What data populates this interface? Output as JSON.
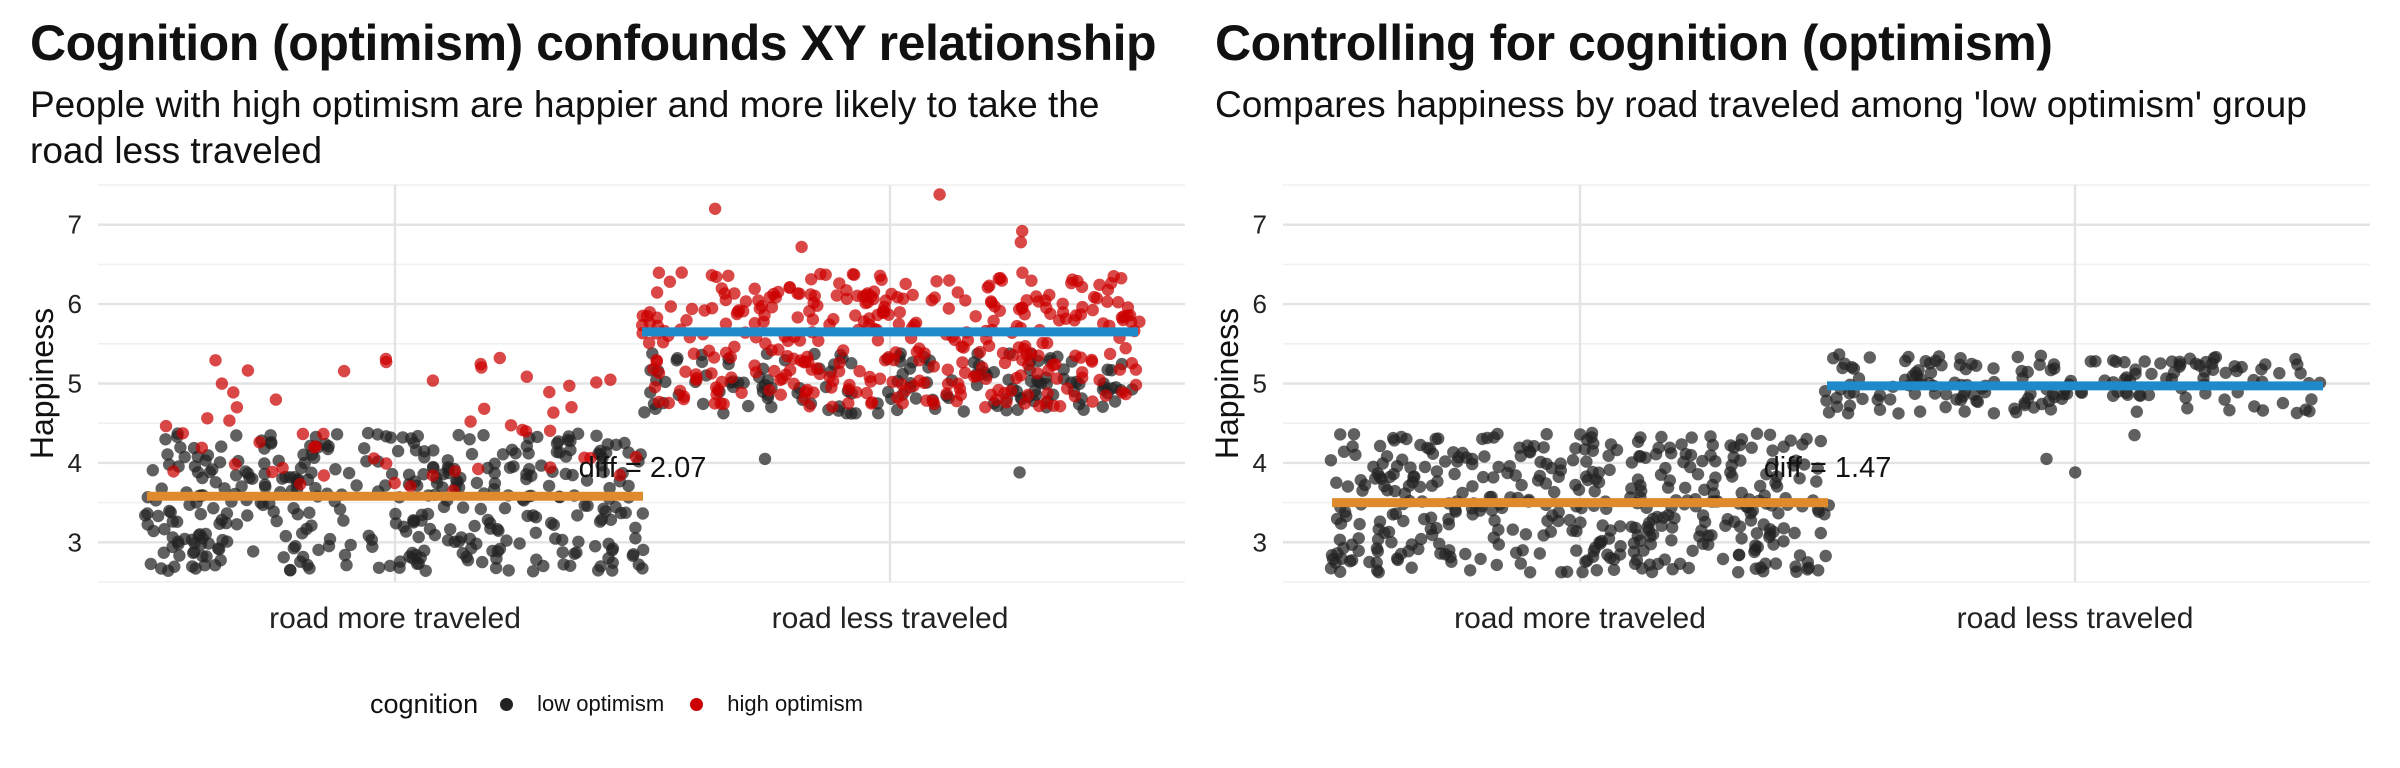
{
  "colors": {
    "low_optimism": "#222222",
    "high_optimism": "#cc0000",
    "mean_more": "#e08a2e",
    "mean_less": "#1f8ac9",
    "grid": "#e6e6e6"
  },
  "legend": {
    "title": "cognition",
    "items": [
      {
        "label": "low optimism",
        "color": "#222222"
      },
      {
        "label": "high optimism",
        "color": "#cc0000"
      }
    ]
  },
  "panels": [
    {
      "title": "Cognition (optimism) confounds XY relationship",
      "subtitle": "People with high optimism are happier and more likely to take the road less traveled"
    },
    {
      "title": "Controlling for cognition (optimism)",
      "subtitle": "Compares happiness by road traveled among 'low optimism' group"
    }
  ],
  "chart_data": [
    {
      "type": "scatter",
      "title": "Cognition (optimism) confounds XY relationship",
      "subtitle": "People with high optimism are happier and more likely to take the road less traveled",
      "xlabel": "",
      "ylabel": "Happiness",
      "categories": [
        "road more traveled",
        "road less traveled"
      ],
      "ylim": [
        2.5,
        7.5
      ],
      "yticks": [
        3,
        4,
        5,
        6,
        7
      ],
      "grid": true,
      "legend_position": "bottom",
      "series": [
        {
          "name": "low optimism",
          "color": "#222222",
          "groups": [
            {
              "category": "road more traveled",
              "count": 380,
              "ymin": 2.62,
              "ymax": 4.38
            },
            {
              "category": "road less traveled",
              "count": 150,
              "ymin": 4.62,
              "ymax": 5.38,
              "extra": [
                3.88,
                4.05
              ]
            }
          ]
        },
        {
          "name": "high optimism",
          "color": "#cc0000",
          "groups": [
            {
              "category": "road more traveled",
              "count": 55,
              "ymin": 3.6,
              "ymax": 5.35
            },
            {
              "category": "road less traveled",
              "count": 360,
              "ymin": 4.7,
              "ymax": 6.4,
              "extra": [
                7.2,
                6.92,
                6.72,
                7.38,
                6.78
              ]
            }
          ]
        }
      ],
      "means": [
        {
          "category": "road more traveled",
          "value": 3.58,
          "color": "#e08a2e"
        },
        {
          "category": "road less traveled",
          "value": 5.65,
          "color": "#1f8ac9"
        }
      ],
      "annotation": {
        "text": "diff = 2.07",
        "x_between": true,
        "y": 3.95
      }
    },
    {
      "type": "scatter",
      "title": "Controlling for cognition (optimism)",
      "subtitle": "Compares happiness by road traveled among 'low optimism' group",
      "xlabel": "",
      "ylabel": "Happiness",
      "categories": [
        "road more traveled",
        "road less traveled"
      ],
      "ylim": [
        2.5,
        7.5
      ],
      "yticks": [
        3,
        4,
        5,
        6,
        7
      ],
      "grid": true,
      "series": [
        {
          "name": "low optimism",
          "color": "#222222",
          "groups": [
            {
              "category": "road more traveled",
              "count": 420,
              "ymin": 2.62,
              "ymax": 4.38
            },
            {
              "category": "road less traveled",
              "count": 170,
              "ymin": 4.62,
              "ymax": 5.38,
              "extra": [
                3.88,
                4.05,
                4.35
              ]
            }
          ]
        }
      ],
      "means": [
        {
          "category": "road more traveled",
          "value": 3.5,
          "color": "#e08a2e"
        },
        {
          "category": "road less traveled",
          "value": 4.97,
          "color": "#1f8ac9"
        }
      ],
      "annotation": {
        "text": "diff = 1.47",
        "x_between": true,
        "y": 3.95
      }
    }
  ]
}
